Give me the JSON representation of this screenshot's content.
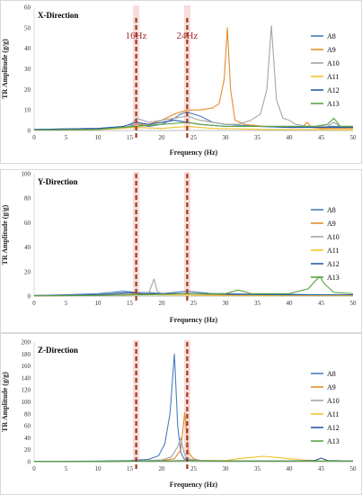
{
  "chart_data": [
    {
      "type": "line",
      "title": "X-Direction",
      "xlabel": "Frequency (Hz)",
      "ylabel": "TR Amplitude (g/g)",
      "xlim": [
        0,
        50
      ],
      "ylim": [
        0,
        60
      ],
      "x_ticks": [
        0,
        5,
        10,
        15,
        20,
        25,
        30,
        35,
        40,
        45,
        50
      ],
      "y_ticks": [
        0,
        10,
        20,
        30,
        40,
        50,
        60
      ],
      "legend": "right",
      "grid": false,
      "markers": [
        {
          "x": 16,
          "label": "16Hz"
        },
        {
          "x": 24,
          "label": "24Hz"
        }
      ],
      "series": [
        {
          "name": "A8",
          "color": "#4a7ebb",
          "x": [
            0,
            5,
            10,
            14,
            16,
            18,
            20,
            22,
            23,
            24,
            26,
            28,
            30,
            35,
            40,
            45,
            50
          ],
          "y": [
            0.5,
            0.8,
            1.0,
            1.5,
            3,
            2,
            3,
            6,
            8,
            9,
            7,
            4,
            3,
            2,
            2,
            2,
            2
          ]
        },
        {
          "name": "A9",
          "color": "#e48d2c",
          "x": [
            0,
            10,
            15,
            16,
            18,
            20,
            22,
            24,
            26,
            28,
            29,
            29.8,
            30.3,
            30.8,
            31.5,
            33,
            36,
            40,
            42,
            42.8,
            43.5,
            45,
            50
          ],
          "y": [
            0.3,
            0.8,
            1.5,
            3,
            3,
            5,
            8,
            10,
            10,
            11,
            13,
            25,
            50,
            20,
            5,
            3,
            2,
            1.5,
            1.5,
            4,
            1.5,
            1,
            1
          ]
        },
        {
          "name": "A10",
          "color": "#a5a5a5",
          "x": [
            0,
            10,
            15,
            16,
            18,
            20,
            22,
            24,
            26,
            28,
            30,
            32,
            34,
            35.5,
            36.5,
            37.2,
            38,
            39,
            40,
            41,
            43,
            46,
            47,
            48,
            50
          ],
          "y": [
            0.3,
            0.5,
            2,
            6,
            4,
            5,
            6,
            7,
            5,
            4,
            3,
            3,
            5,
            8,
            20,
            51,
            15,
            6,
            5,
            3,
            2,
            2,
            4,
            2,
            2
          ]
        },
        {
          "name": "A11",
          "color": "#f2c12e",
          "x": [
            0,
            10,
            16,
            20,
            24,
            28,
            32,
            36,
            40,
            45,
            50
          ],
          "y": [
            0.2,
            0.4,
            1.5,
            1,
            2,
            1,
            0.8,
            0.5,
            0.5,
            0.4,
            0.3
          ]
        },
        {
          "name": "A12",
          "color": "#2a5ca8",
          "x": [
            0,
            10,
            14,
            16,
            18,
            20,
            22,
            24,
            26,
            30,
            35,
            40,
            45,
            50
          ],
          "y": [
            0.5,
            1,
            2,
            4,
            3,
            4,
            5,
            4,
            3,
            2,
            2,
            1.5,
            1.5,
            1.5
          ]
        },
        {
          "name": "A13",
          "color": "#5aa544",
          "x": [
            0,
            10,
            16,
            20,
            24,
            26,
            30,
            35,
            40,
            44,
            46,
            47,
            48,
            50
          ],
          "y": [
            0.2,
            0.5,
            2,
            3,
            4,
            3,
            2,
            2,
            2,
            2,
            3,
            6,
            2,
            2
          ]
        }
      ]
    },
    {
      "type": "line",
      "title": "Y-Direction",
      "xlabel": "Frequency (Hz)",
      "ylabel": "TR Amplitude (g/g)",
      "xlim": [
        0,
        50
      ],
      "ylim": [
        0,
        100
      ],
      "x_ticks": [
        0,
        5,
        10,
        15,
        20,
        25,
        30,
        35,
        40,
        45,
        50
      ],
      "y_ticks": [
        0,
        20,
        40,
        60,
        80,
        100
      ],
      "legend": "right",
      "grid": false,
      "markers": [
        {
          "x": 16
        },
        {
          "x": 24
        }
      ],
      "series": [
        {
          "name": "A8",
          "color": "#4a7ebb",
          "x": [
            0,
            5,
            10,
            14,
            16,
            18,
            20,
            22,
            24,
            26,
            28,
            30,
            35,
            40,
            45,
            50
          ],
          "y": [
            0.5,
            1,
            2,
            4,
            3,
            3,
            2,
            3,
            4,
            3,
            2,
            2,
            1.5,
            1.5,
            1,
            1
          ]
        },
        {
          "name": "A9",
          "color": "#e48d2c",
          "x": [
            0,
            10,
            16,
            20,
            24,
            30,
            40,
            50
          ],
          "y": [
            0.3,
            1,
            2,
            1.5,
            2,
            1,
            1,
            1
          ]
        },
        {
          "name": "A10",
          "color": "#a5a5a5",
          "x": [
            0,
            10,
            15,
            16,
            18,
            18.8,
            19.3,
            20,
            22,
            24,
            30,
            40,
            50
          ],
          "y": [
            0.3,
            1,
            2,
            3,
            3,
            14,
            4,
            2,
            2,
            2,
            1.5,
            1,
            1
          ]
        },
        {
          "name": "A11",
          "color": "#f2c12e",
          "x": [
            0,
            10,
            16,
            20,
            25,
            30,
            40,
            50
          ],
          "y": [
            0.2,
            0.5,
            1,
            1,
            0.8,
            0.5,
            0.5,
            0.4
          ]
        },
        {
          "name": "A12",
          "color": "#2a5ca8",
          "x": [
            0,
            10,
            15,
            17,
            20,
            25,
            30,
            40,
            50
          ],
          "y": [
            0.3,
            1,
            3,
            2,
            2,
            2,
            1.5,
            1,
            1
          ]
        },
        {
          "name": "A13",
          "color": "#5aa544",
          "x": [
            0,
            10,
            16,
            20,
            24,
            30,
            32,
            34,
            40,
            43,
            44,
            44.8,
            45.5,
            47,
            50
          ],
          "y": [
            0.2,
            0.5,
            1,
            1.5,
            2,
            2,
            5,
            2,
            2,
            6,
            12,
            16,
            10,
            3,
            2
          ]
        }
      ]
    },
    {
      "type": "line",
      "title": "Z-Direction",
      "xlabel": "Frequency (Hz)",
      "ylabel": "TR Amplitude (g/g)",
      "xlim": [
        0,
        50
      ],
      "ylim": [
        0,
        200
      ],
      "x_ticks": [
        0,
        5,
        10,
        15,
        20,
        25,
        30,
        35,
        40,
        45,
        50
      ],
      "y_ticks": [
        0,
        20,
        40,
        60,
        80,
        100,
        120,
        140,
        160,
        180,
        200
      ],
      "legend": "right",
      "grid": false,
      "markers": [
        {
          "x": 16
        },
        {
          "x": 24
        }
      ],
      "series": [
        {
          "name": "A8",
          "color": "#4a7ebb",
          "x": [
            0,
            10,
            15,
            18,
            19.5,
            20.5,
            21.3,
            22,
            22.5,
            23,
            23.5,
            24.5,
            26,
            30,
            40,
            50
          ],
          "y": [
            0.5,
            1,
            2,
            4,
            10,
            30,
            80,
            180,
            60,
            15,
            5,
            2,
            1.5,
            1,
            1,
            1
          ]
        },
        {
          "name": "A9",
          "color": "#e48d2c",
          "x": [
            0,
            10,
            16,
            20,
            22,
            23,
            23.6,
            24.2,
            25,
            26,
            30,
            40,
            50
          ],
          "y": [
            0.3,
            0.5,
            1,
            2,
            5,
            20,
            82,
            15,
            5,
            2,
            1,
            1,
            1
          ]
        },
        {
          "name": "A10",
          "color": "#a5a5a5",
          "x": [
            0,
            10,
            16,
            20,
            21.5,
            22.5,
            23,
            23.5,
            24,
            26,
            30,
            40,
            50
          ],
          "y": [
            0.3,
            0.5,
            1,
            3,
            8,
            25,
            40,
            15,
            5,
            2,
            1,
            1,
            1
          ]
        },
        {
          "name": "A11",
          "color": "#f2c12e",
          "x": [
            0,
            10,
            20,
            25,
            30,
            32,
            34,
            36,
            38,
            40,
            42,
            44,
            46,
            50
          ],
          "y": [
            0.2,
            0.4,
            1,
            2,
            2,
            5,
            7,
            9,
            7,
            5,
            3,
            2,
            1,
            1
          ]
        },
        {
          "name": "A12",
          "color": "#2a5ca8",
          "x": [
            0,
            10,
            20,
            24,
            30,
            40,
            44,
            45,
            46,
            50
          ],
          "y": [
            0.3,
            0.5,
            1,
            2,
            1,
            1,
            2,
            6,
            2,
            1
          ]
        },
        {
          "name": "A13",
          "color": "#5aa544",
          "x": [
            0,
            10,
            20,
            24,
            30,
            40,
            50
          ],
          "y": [
            0.2,
            0.4,
            1,
            1.5,
            1,
            1,
            1
          ]
        }
      ]
    }
  ]
}
